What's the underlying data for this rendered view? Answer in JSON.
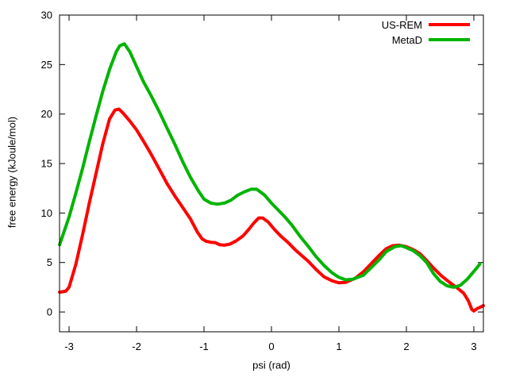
{
  "chart_data": {
    "type": "line",
    "title": "",
    "xlabel": "psi (rad)",
    "ylabel": "free energy (kJoule/mol)",
    "xlim": [
      -3.1416,
      3.1416
    ],
    "ylim": [
      -2,
      30
    ],
    "xticks": [
      -3,
      -2,
      -1,
      0,
      1,
      2,
      3
    ],
    "yticks": [
      0,
      5,
      10,
      15,
      20,
      25,
      30
    ],
    "grid": false,
    "legend_position": "top-right-inside",
    "border_color": "#000000",
    "line_width": 4,
    "series": [
      {
        "name": "US-REM",
        "color": "#ff0000",
        "points": [
          [
            -3.14,
            2.0
          ],
          [
            -3.05,
            2.1
          ],
          [
            -3.0,
            2.5
          ],
          [
            -2.9,
            4.8
          ],
          [
            -2.8,
            7.8
          ],
          [
            -2.7,
            11.0
          ],
          [
            -2.6,
            14.0
          ],
          [
            -2.5,
            17.0
          ],
          [
            -2.4,
            19.5
          ],
          [
            -2.32,
            20.4
          ],
          [
            -2.26,
            20.5
          ],
          [
            -2.2,
            20.1
          ],
          [
            -2.1,
            19.3
          ],
          [
            -2.0,
            18.4
          ],
          [
            -1.9,
            17.3
          ],
          [
            -1.78,
            15.9
          ],
          [
            -1.66,
            14.4
          ],
          [
            -1.55,
            13.0
          ],
          [
            -1.43,
            11.7
          ],
          [
            -1.31,
            10.5
          ],
          [
            -1.2,
            9.4
          ],
          [
            -1.1,
            8.1
          ],
          [
            -1.03,
            7.4
          ],
          [
            -0.97,
            7.15
          ],
          [
            -0.9,
            7.05
          ],
          [
            -0.83,
            7.0
          ],
          [
            -0.77,
            6.8
          ],
          [
            -0.7,
            6.75
          ],
          [
            -0.62,
            6.85
          ],
          [
            -0.52,
            7.2
          ],
          [
            -0.42,
            7.7
          ],
          [
            -0.33,
            8.4
          ],
          [
            -0.26,
            9.0
          ],
          [
            -0.19,
            9.5
          ],
          [
            -0.13,
            9.5
          ],
          [
            -0.05,
            9.1
          ],
          [
            0.05,
            8.3
          ],
          [
            0.15,
            7.6
          ],
          [
            0.25,
            7.0
          ],
          [
            0.35,
            6.3
          ],
          [
            0.45,
            5.7
          ],
          [
            0.55,
            5.1
          ],
          [
            0.66,
            4.3
          ],
          [
            0.78,
            3.55
          ],
          [
            0.9,
            3.15
          ],
          [
            1.0,
            2.95
          ],
          [
            1.1,
            3.0
          ],
          [
            1.24,
            3.4
          ],
          [
            1.36,
            4.05
          ],
          [
            1.48,
            4.9
          ],
          [
            1.6,
            5.75
          ],
          [
            1.7,
            6.4
          ],
          [
            1.8,
            6.7
          ],
          [
            1.9,
            6.75
          ],
          [
            2.0,
            6.6
          ],
          [
            2.1,
            6.3
          ],
          [
            2.2,
            5.9
          ],
          [
            2.3,
            5.2
          ],
          [
            2.4,
            4.45
          ],
          [
            2.52,
            3.65
          ],
          [
            2.64,
            3.0
          ],
          [
            2.75,
            2.45
          ],
          [
            2.85,
            1.9
          ],
          [
            2.92,
            1.1
          ],
          [
            2.97,
            0.25
          ],
          [
            3.0,
            0.1
          ],
          [
            3.05,
            0.35
          ],
          [
            3.1,
            0.5
          ],
          [
            3.14,
            0.65
          ]
        ]
      },
      {
        "name": "MetaD",
        "color": "#00b400",
        "points": [
          [
            -3.14,
            6.8
          ],
          [
            -3.0,
            9.6
          ],
          [
            -2.9,
            12.0
          ],
          [
            -2.8,
            14.5
          ],
          [
            -2.7,
            17.2
          ],
          [
            -2.6,
            19.8
          ],
          [
            -2.5,
            22.3
          ],
          [
            -2.4,
            24.5
          ],
          [
            -2.3,
            26.3
          ],
          [
            -2.25,
            26.9
          ],
          [
            -2.18,
            27.1
          ],
          [
            -2.1,
            26.3
          ],
          [
            -2.0,
            24.8
          ],
          [
            -1.9,
            23.3
          ],
          [
            -1.78,
            21.8
          ],
          [
            -1.66,
            20.2
          ],
          [
            -1.55,
            18.6
          ],
          [
            -1.43,
            16.9
          ],
          [
            -1.31,
            15.1
          ],
          [
            -1.2,
            13.6
          ],
          [
            -1.08,
            12.2
          ],
          [
            -1.0,
            11.4
          ],
          [
            -0.9,
            11.0
          ],
          [
            -0.8,
            10.9
          ],
          [
            -0.7,
            11.0
          ],
          [
            -0.6,
            11.3
          ],
          [
            -0.5,
            11.8
          ],
          [
            -0.4,
            12.15
          ],
          [
            -0.3,
            12.4
          ],
          [
            -0.22,
            12.4
          ],
          [
            -0.1,
            11.8
          ],
          [
            0.0,
            11.0
          ],
          [
            0.1,
            10.3
          ],
          [
            0.2,
            9.6
          ],
          [
            0.3,
            8.8
          ],
          [
            0.43,
            7.6
          ],
          [
            0.55,
            6.6
          ],
          [
            0.66,
            5.6
          ],
          [
            0.78,
            4.7
          ],
          [
            0.9,
            3.95
          ],
          [
            1.0,
            3.5
          ],
          [
            1.1,
            3.25
          ],
          [
            1.2,
            3.3
          ],
          [
            1.36,
            3.7
          ],
          [
            1.48,
            4.5
          ],
          [
            1.6,
            5.3
          ],
          [
            1.7,
            6.1
          ],
          [
            1.83,
            6.6
          ],
          [
            1.92,
            6.7
          ],
          [
            2.0,
            6.5
          ],
          [
            2.1,
            6.2
          ],
          [
            2.2,
            5.7
          ],
          [
            2.3,
            5.0
          ],
          [
            2.4,
            3.9
          ],
          [
            2.5,
            3.1
          ],
          [
            2.6,
            2.65
          ],
          [
            2.7,
            2.5
          ],
          [
            2.8,
            2.7
          ],
          [
            2.9,
            3.3
          ],
          [
            3.0,
            4.1
          ],
          [
            3.09,
            4.85
          ]
        ]
      }
    ]
  }
}
